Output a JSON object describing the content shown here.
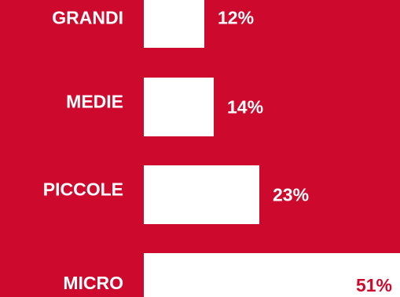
{
  "colors": {
    "background": "#cd0a2d",
    "bar": "#ffffff",
    "label_on_red": "#ffffff",
    "label_on_white": "#cd0a2d"
  },
  "chart_data": {
    "type": "bar",
    "orientation": "horizontal",
    "categories": [
      "GRANDI",
      "MEDIE",
      "PICCOLE",
      "MICRO"
    ],
    "values": [
      12,
      14,
      23,
      51
    ],
    "value_labels": [
      "12%",
      "14%",
      "23%",
      "51%"
    ],
    "unit": "%",
    "title": "",
    "xlabel": "",
    "ylabel": "",
    "grid": false,
    "xlim": [
      0,
      51
    ]
  }
}
